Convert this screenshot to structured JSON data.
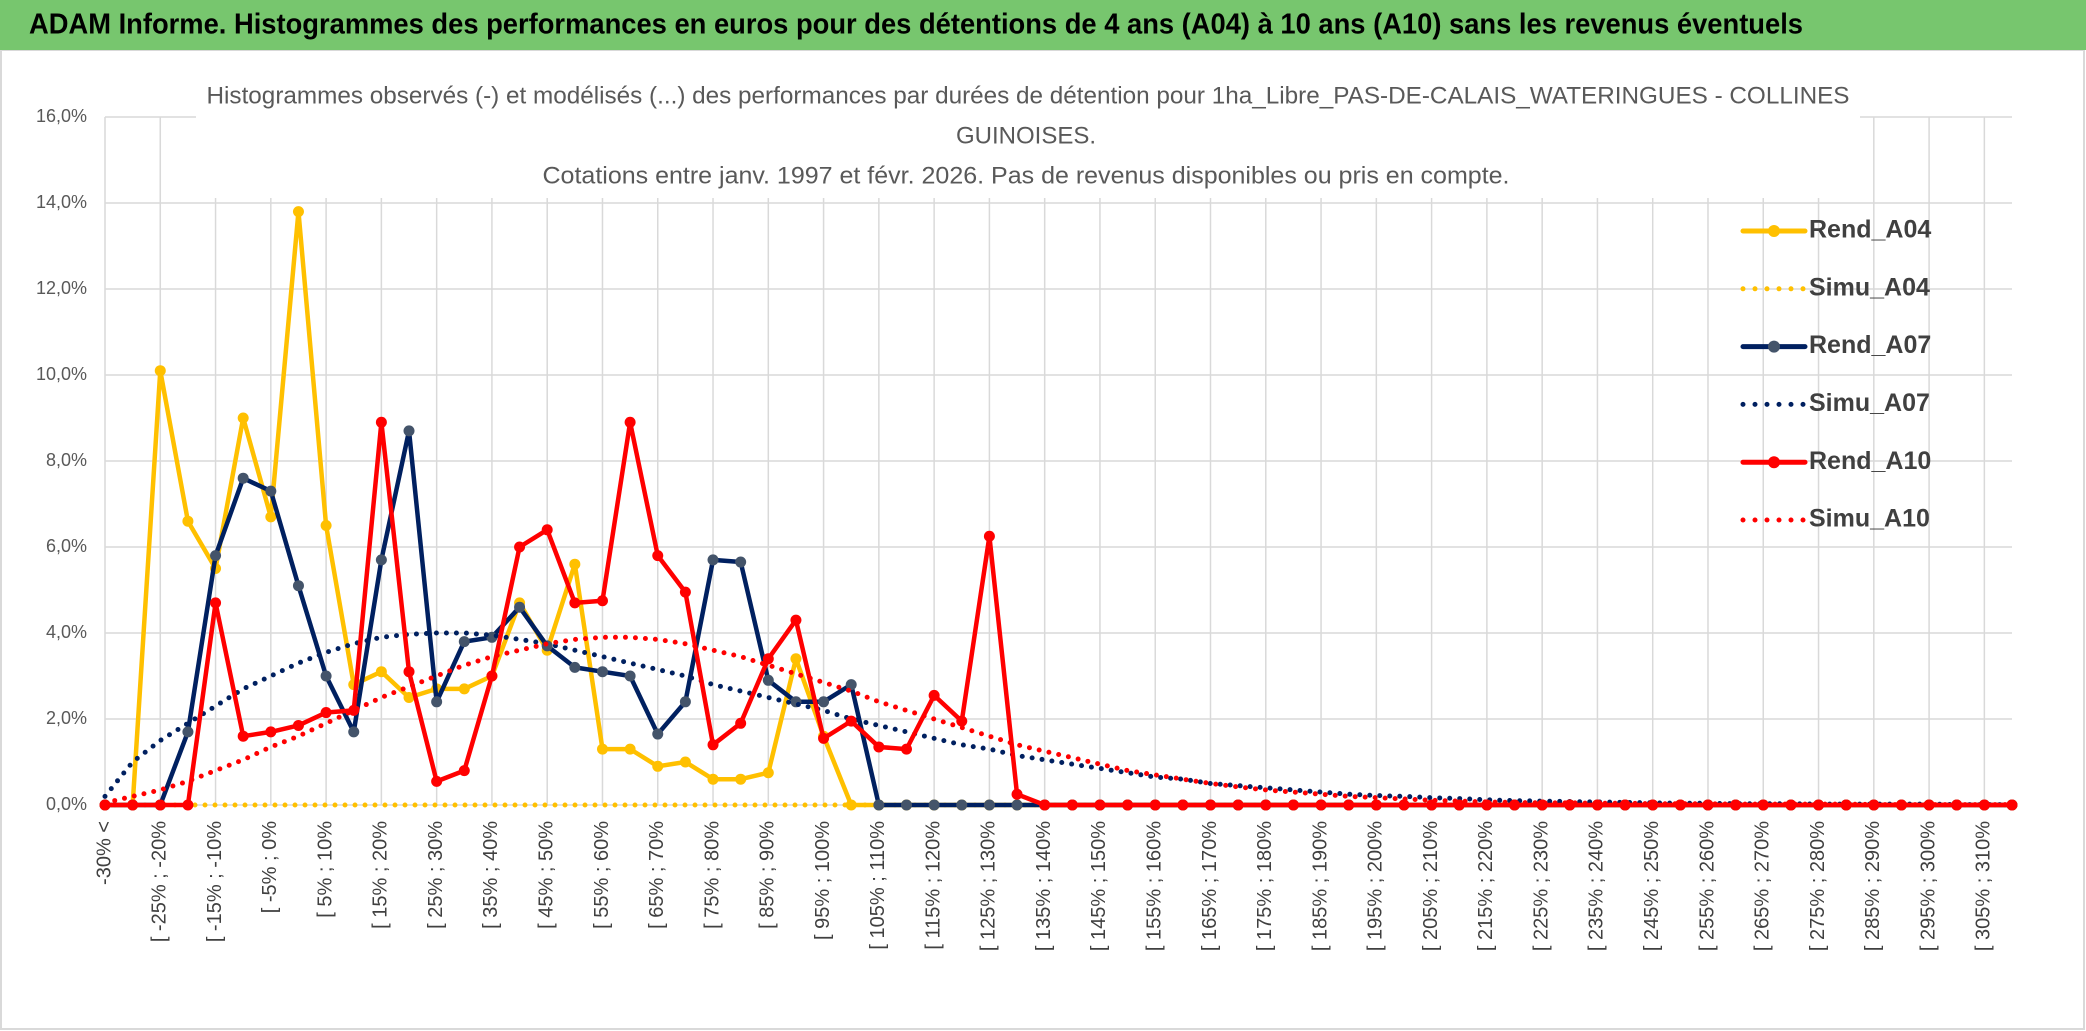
{
  "header": {
    "title": "ADAM Informe. Histogrammes des performances en euros pour des détentions de 4 ans (A04) à 10 ans (A10) sans les revenus éventuels"
  },
  "chart_data": {
    "type": "line",
    "title": [
      "Histogrammes observés (-) et modélisés (...) des performances par durées de détention pour 1ha_Libre_PAS-DE-CALAIS_WATERINGUES - COLLINES",
      "GUINOISES.",
      "Cotations entre janv. 1997 et févr. 2026. Pas de revenus disponibles ou pris en compte."
    ],
    "categories": [
      "-30% <",
      null,
      "[ -25% ; -20%",
      null,
      "[ -15% ; -10%",
      null,
      "[ -5% ; 0%",
      null,
      "[ 5% ; 10%",
      null,
      "[ 15% ; 20%",
      null,
      "[ 25% ; 30%",
      null,
      "[ 35% ; 40%",
      null,
      "[ 45% ; 50%",
      null,
      "[ 55% ; 60%",
      null,
      "[ 65% ; 70%",
      null,
      "[ 75% ; 80%",
      null,
      "[ 85% ; 90%",
      null,
      "[ 95% ; 100%",
      null,
      "[ 105% ; 110%",
      null,
      "[ 115% ; 120%",
      null,
      "[ 125% ; 130%",
      null,
      "[ 135% ; 140%",
      null,
      "[ 145% ; 150%",
      null,
      "[ 155% ; 160%",
      null,
      "[ 165% ; 170%",
      null,
      "[ 175% ; 180%",
      null,
      "[ 185% ; 190%",
      null,
      "[ 195% ; 200%",
      null,
      "[ 205% ; 210%",
      null,
      "[ 215% ; 220%",
      null,
      "[ 225% ; 230%",
      null,
      "[ 235% ; 240%",
      null,
      "[ 245% ; 250%",
      null,
      "[ 255% ; 260%",
      null,
      "[ 265% ; 270%",
      null,
      "[ 275% ; 280%",
      null,
      "[ 285% ; 290%",
      null,
      "[ 295% ; 300%",
      null,
      "[ 305% ; 310%",
      null
    ],
    "series": [
      {
        "name": "Rend_A04",
        "color": "#FFC000",
        "style": "solid",
        "markers": true,
        "values": [
          0,
          0,
          10.1,
          6.6,
          5.5,
          9.0,
          6.7,
          13.8,
          6.5,
          2.8,
          3.1,
          2.5,
          2.7,
          2.7,
          3.0,
          4.7,
          3.6,
          5.6,
          1.3,
          1.3,
          0.9,
          1.0,
          0.6,
          0.6,
          0.75,
          3.4,
          1.6,
          0,
          0,
          0,
          0,
          0,
          0,
          0,
          0,
          0,
          0,
          0,
          0,
          0,
          0,
          0,
          0,
          0,
          0,
          0,
          0,
          0,
          0,
          0,
          0,
          0,
          0,
          0,
          0,
          0,
          0,
          0,
          0,
          0,
          0,
          0,
          0,
          0,
          0,
          0,
          0,
          0,
          0,
          0
        ]
      },
      {
        "name": "Simu_A04",
        "color": "#FFC000",
        "style": "dotted",
        "markers": false,
        "values": [
          0,
          0,
          0,
          0,
          0,
          0,
          0,
          0,
          0,
          0,
          0,
          0,
          0,
          0,
          0,
          0,
          0,
          0,
          0,
          0,
          0,
          0,
          0,
          0,
          0,
          0,
          0,
          0,
          0,
          0,
          0,
          0,
          0,
          0,
          0,
          0,
          0,
          0,
          0,
          0,
          0,
          0,
          0,
          0,
          0,
          0,
          0,
          0,
          0,
          0,
          0,
          0,
          0,
          0,
          0,
          0,
          0,
          0,
          0,
          0,
          0,
          0,
          0,
          0,
          0,
          0,
          0,
          0,
          0,
          0
        ]
      },
      {
        "name": "Rend_A07",
        "color": "#002060",
        "style": "solid",
        "markers": true,
        "values": [
          0,
          0,
          0,
          1.7,
          5.8,
          7.6,
          7.3,
          5.1,
          3.0,
          1.7,
          5.7,
          8.7,
          2.4,
          3.8,
          3.9,
          4.6,
          3.7,
          3.2,
          3.1,
          3.0,
          1.65,
          2.4,
          5.7,
          5.65,
          2.9,
          2.4,
          2.4,
          2.8,
          0,
          0,
          0,
          0,
          0,
          0,
          0,
          0,
          0,
          0,
          0,
          0,
          0,
          0,
          0,
          0,
          0,
          0,
          0,
          0,
          0,
          0,
          0,
          0,
          0,
          0,
          0,
          0,
          0,
          0,
          0,
          0,
          0,
          0,
          0,
          0,
          0,
          0,
          0,
          0,
          0,
          0
        ]
      },
      {
        "name": "Simu_A07",
        "color": "#002060",
        "style": "dotted",
        "markers": false,
        "values": [
          0.2,
          1.0,
          1.5,
          1.9,
          2.3,
          2.7,
          3.0,
          3.3,
          3.55,
          3.75,
          3.9,
          3.97,
          4.0,
          4.0,
          3.95,
          3.85,
          3.75,
          3.6,
          3.45,
          3.3,
          3.15,
          3.0,
          2.8,
          2.65,
          2.5,
          2.35,
          2.2,
          2.0,
          1.85,
          1.7,
          1.55,
          1.4,
          1.3,
          1.15,
          1.05,
          0.95,
          0.85,
          0.75,
          0.65,
          0.6,
          0.5,
          0.45,
          0.4,
          0.35,
          0.3,
          0.25,
          0.22,
          0.2,
          0.17,
          0.15,
          0.12,
          0.1,
          0.09,
          0.08,
          0.07,
          0.06,
          0.05,
          0.04,
          0.04,
          0.03,
          0.03,
          0.03,
          0.02,
          0.02,
          0.02,
          0.02,
          0.02,
          0.01,
          0.01,
          0.01
        ]
      },
      {
        "name": "Rend_A10",
        "color": "#FF0000",
        "style": "solid",
        "markers": true,
        "values": [
          0,
          0,
          0,
          0,
          4.7,
          1.6,
          1.7,
          1.85,
          2.15,
          2.2,
          8.9,
          3.1,
          0.55,
          0.8,
          3.0,
          6.0,
          6.4,
          4.7,
          4.75,
          8.9,
          5.8,
          4.95,
          1.4,
          1.9,
          3.4,
          4.3,
          1.55,
          1.95,
          1.35,
          1.3,
          2.55,
          1.95,
          6.25,
          0.25,
          0,
          0,
          0,
          0,
          0,
          0,
          0,
          0,
          0,
          0,
          0,
          0,
          0,
          0,
          0,
          0,
          0,
          0,
          0,
          0,
          0,
          0,
          0,
          0,
          0,
          0,
          0,
          0,
          0,
          0,
          0,
          0,
          0,
          0,
          0,
          0
        ]
      },
      {
        "name": "Simu_A10",
        "color": "#FF0000",
        "style": "dotted",
        "markers": false,
        "values": [
          0.05,
          0.2,
          0.35,
          0.55,
          0.8,
          1.05,
          1.35,
          1.6,
          1.9,
          2.2,
          2.5,
          2.75,
          3.0,
          3.25,
          3.45,
          3.6,
          3.75,
          3.85,
          3.9,
          3.9,
          3.85,
          3.75,
          3.6,
          3.45,
          3.25,
          3.05,
          2.85,
          2.65,
          2.4,
          2.2,
          2.0,
          1.8,
          1.6,
          1.4,
          1.25,
          1.1,
          0.95,
          0.8,
          0.7,
          0.6,
          0.5,
          0.42,
          0.35,
          0.3,
          0.25,
          0.2,
          0.17,
          0.14,
          0.11,
          0.09,
          0.07,
          0.06,
          0.05,
          0.05,
          0.04,
          0.04,
          0.03,
          0.03,
          0.03,
          0.02,
          0.02,
          0.02,
          0.02,
          0.02,
          0.01,
          0.01,
          0.01,
          0.01,
          0.01,
          0.01
        ]
      }
    ],
    "ylim": [
      0,
      16
    ],
    "yticks": [
      {
        "value": 0,
        "label": "0,0%"
      },
      {
        "value": 2,
        "label": "2,0%"
      },
      {
        "value": 4,
        "label": "4,0%"
      },
      {
        "value": 6,
        "label": "6,0%"
      },
      {
        "value": 8,
        "label": "8,0%"
      },
      {
        "value": 10,
        "label": "10,0%"
      },
      {
        "value": 12,
        "label": "12,0%"
      },
      {
        "value": 14,
        "label": "14,0%"
      },
      {
        "value": 16,
        "label": "16,0%"
      }
    ],
    "grid": true,
    "legend": "right"
  }
}
